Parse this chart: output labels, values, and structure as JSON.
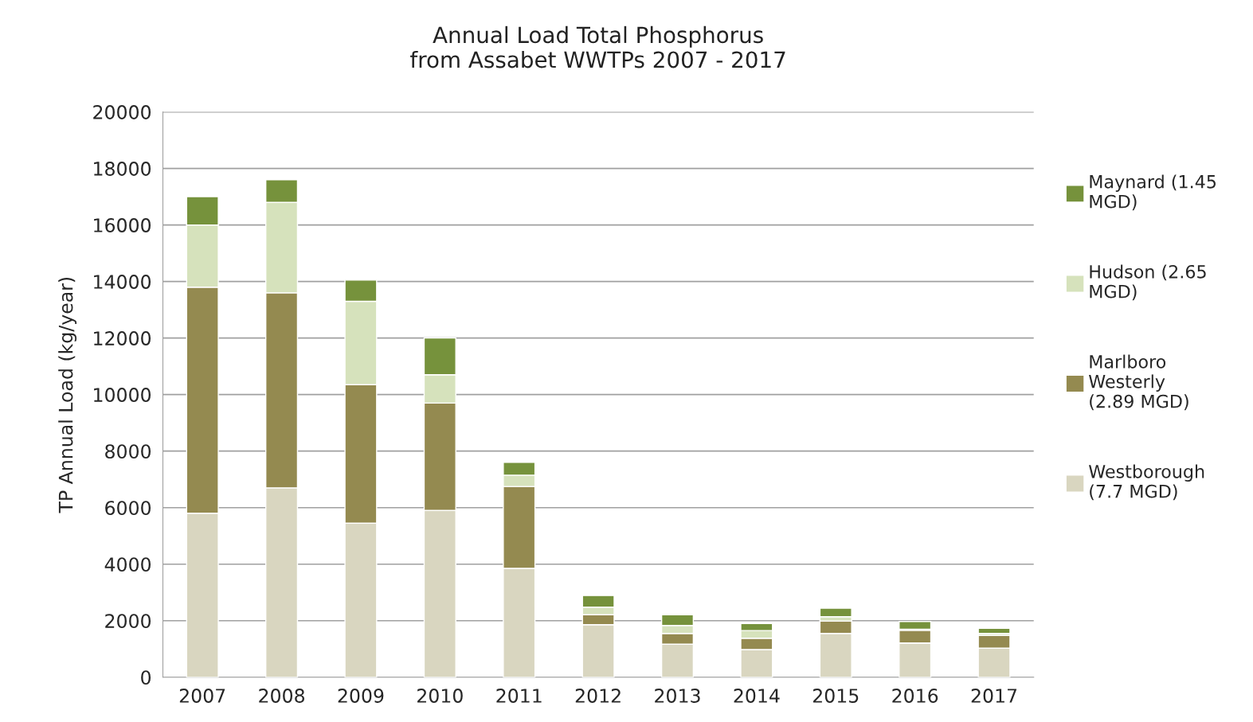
{
  "chart_data": {
    "type": "bar",
    "title": "Annual Load Total Phosphorus\nfrom Assabet WWTPs 2007 - 2017",
    "ylabel": "TP Annual Load (kg/year)",
    "categories": [
      "2007",
      "2008",
      "2009",
      "2010",
      "2011",
      "2012",
      "2013",
      "2014",
      "2015",
      "2016",
      "2017"
    ],
    "stacked": true,
    "series": [
      {
        "name": "Westborough (7.7 MGD)",
        "color": "#d9d6c0",
        "values": [
          5800,
          6700,
          5450,
          5900,
          3850,
          1860,
          1170,
          980,
          1550,
          1210,
          1030
        ]
      },
      {
        "name": "Marlboro Westerly (2.89 MGD)",
        "color": "#948a50",
        "values": [
          8000,
          6900,
          4900,
          3800,
          2900,
          350,
          380,
          400,
          440,
          450,
          450
        ]
      },
      {
        "name": "Hudson (2.65 MGD)",
        "color": "#d6e2bc",
        "values": [
          2200,
          3200,
          2950,
          1000,
          400,
          270,
          280,
          270,
          150,
          40,
          70
        ]
      },
      {
        "name": "Maynard (1.45 MGD)",
        "color": "#76923c",
        "values": [
          1000,
          800,
          750,
          1300,
          450,
          410,
          380,
          250,
          300,
          270,
          180
        ]
      }
    ],
    "ylim": [
      0,
      20000
    ],
    "yticks": [
      0,
      2000,
      4000,
      6000,
      8000,
      10000,
      12000,
      14000,
      16000,
      18000,
      20000
    ],
    "grid": "y",
    "legend": "right"
  }
}
